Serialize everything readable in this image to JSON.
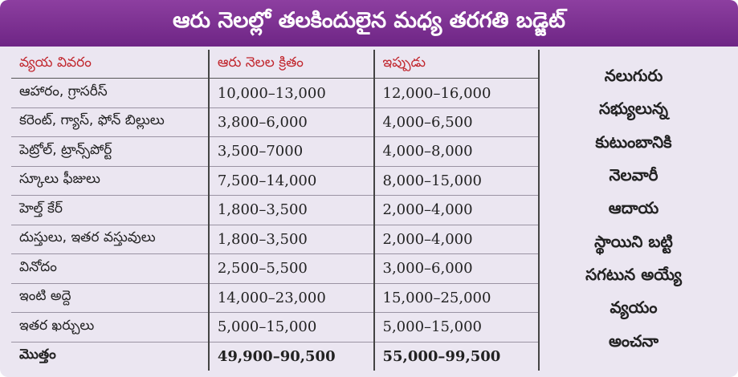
{
  "header": {
    "title": "ఆరు నెలల్లో తలకిందులైన మధ్య తరగతి బడ్జెట్"
  },
  "table": {
    "columns": [
      "వ్యయ వివరం",
      "ఆరు నెలల క్రితం",
      "ఇప్పుడు"
    ],
    "rows": [
      [
        "ఆహారం, గ్రాసరీస్",
        "10,000–13,000",
        "12,000–16,000"
      ],
      [
        "కరెంట్, గ్యాస్, ఫోన్ బిల్లులు",
        "3,800–6,000",
        "4,000–6,500"
      ],
      [
        "పెట్రోల్, ట్రాన్స్‌పోర్ట్",
        "3,500–7000",
        "4,000–8,000"
      ],
      [
        "స్కూలు ఫీజులు",
        "7,500–14,000",
        "8,000–15,000"
      ],
      [
        "హెల్త్ కేర్",
        "1,800–3,500",
        "2,000–4,000"
      ],
      [
        "దుస్తులు, ఇతర వస్తువులు",
        "1,800–3,500",
        "2,000–4,000"
      ],
      [
        "వినోదం",
        "2,500–5,500",
        "3,000–6,000"
      ],
      [
        "ఇంటి అద్దె",
        "14,000–23,000",
        "15,000–25,000"
      ],
      [
        "ఇతర ఖర్చులు",
        "5,000–15,000",
        "5,000–15,000"
      ],
      [
        "మొత్తం",
        "49,900–90,500",
        "55,000–99,500"
      ]
    ]
  },
  "note": {
    "lines": [
      "నలుగురు",
      "సభ్యులున్న",
      "కుటుంబానికి",
      "నెలవారీ",
      "ఆదాయ",
      "స్థాయిని బట్టి",
      "సగటున అయ్యే",
      "వ్యయం",
      "అంచనా"
    ]
  }
}
